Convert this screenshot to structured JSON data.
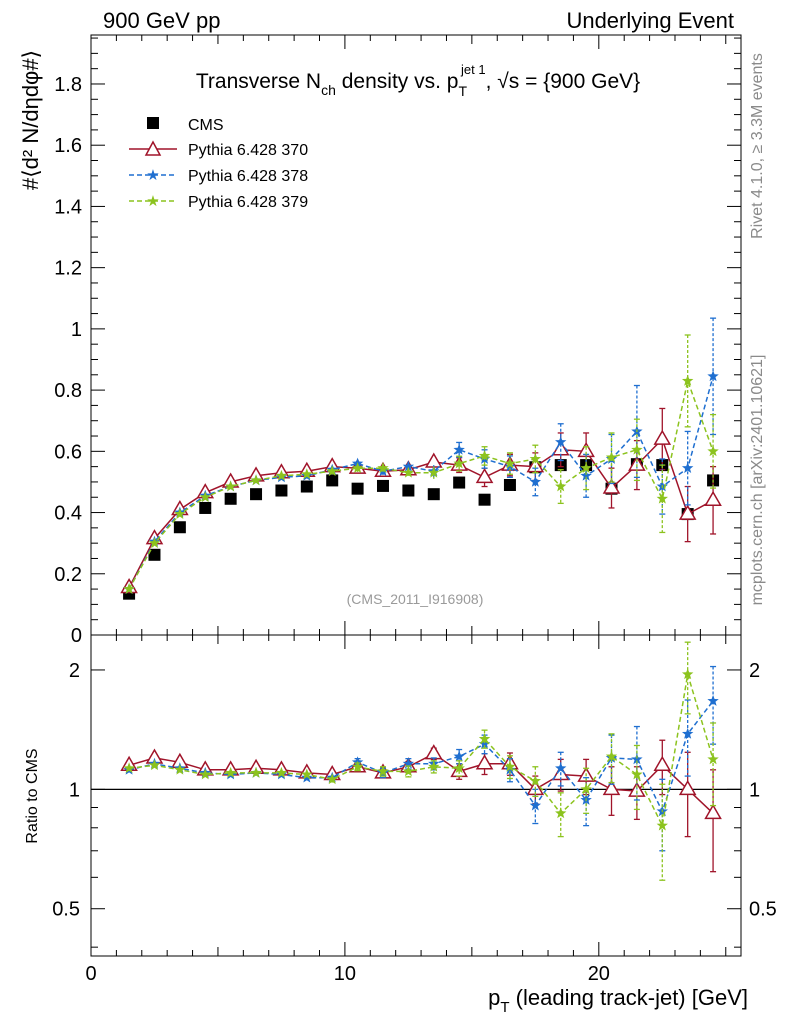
{
  "header": {
    "left": "900 GeV pp",
    "right": "Underlying Event"
  },
  "side_labels": {
    "top": "Rivet 4.1.0, ≥ 3.3M events",
    "bottom": "mcplots.cern.ch [arXiv:2401.10621]"
  },
  "chart_data": {
    "type": "scatter",
    "title": {
      "main": "Transverse N",
      "sub1": "ch",
      "mid": " density vs. p",
      "sub2": "T",
      "sup2": "jet 1",
      "tail": ", √s = {900 GeV}"
    },
    "ylabel": "#⟨d² N/dηdφ#⟩",
    "xlabel": "p",
    "xlabel_sub": "T",
    "xlabel_tail": " (leading track-jet) [GeV]",
    "ratio_ylabel": "Ratio to CMS",
    "watermark": "(CMS_2011_I916908)",
    "xlim": [
      0,
      25.6
    ],
    "ylim": [
      0,
      1.96
    ],
    "ratio_ylim": [
      0.38,
      2.45
    ],
    "x_ticks": [
      "0",
      "10",
      "20"
    ],
    "y_ticks": [
      "0",
      "0.2",
      "0.4",
      "0.6",
      "0.8",
      "1",
      "1.2",
      "1.4",
      "1.6",
      "1.8"
    ],
    "ratio_ticks": [
      "0.5",
      "1",
      "2"
    ],
    "x": [
      1.5,
      2.5,
      3.5,
      4.5,
      5.5,
      6.5,
      7.5,
      8.5,
      9.5,
      10.5,
      11.5,
      12.5,
      13.5,
      14.5,
      15.5,
      16.5,
      17.5,
      18.5,
      19.5,
      20.5,
      21.5,
      22.5,
      23.5,
      24.5
    ],
    "legend": [
      "CMS",
      "Pythia 6.428 370",
      "Pythia 6.428 378",
      "Pythia 6.428 379"
    ],
    "series": [
      {
        "name": "CMS",
        "color": "#000000",
        "style": "square",
        "values": [
          0.135,
          0.262,
          0.352,
          0.415,
          0.445,
          0.46,
          0.472,
          0.485,
          0.505,
          0.478,
          0.487,
          0.472,
          0.46,
          0.498,
          0.442,
          0.49,
          0.548,
          0.555,
          0.555,
          0.478,
          0.558,
          0.555,
          0.395,
          0.505
        ],
        "errors": [
          0.005,
          0.005,
          0.005,
          0.005,
          0.005,
          0.005,
          0.005,
          0.005,
          0.005,
          0.005,
          0.005,
          0.005,
          0.005,
          0.005,
          0.005,
          0.005,
          0.005,
          0.005,
          0.005,
          0.005,
          0.005,
          0.005,
          0.005,
          0.005
        ],
        "ratio": [
          1.0,
          1.0,
          1.0,
          1.0,
          1.0,
          1.0,
          1.0,
          1.0,
          1.0,
          1.0,
          1.0,
          1.0,
          1.0,
          1.0,
          1.0,
          1.0,
          1.0,
          1.0,
          1.0,
          1.0,
          1.0,
          1.0,
          1.0,
          1.0
        ],
        "ratio_errors": [
          0,
          0,
          0,
          0,
          0,
          0,
          0,
          0,
          0,
          0,
          0,
          0,
          0,
          0,
          0,
          0,
          0,
          0,
          0,
          0,
          0,
          0,
          0,
          0
        ]
      },
      {
        "name": "Pythia 6.428 370",
        "color": "#a0142a",
        "style": "triangle",
        "values": [
          0.155,
          0.315,
          0.41,
          0.465,
          0.5,
          0.52,
          0.53,
          0.535,
          0.55,
          0.545,
          0.535,
          0.54,
          0.565,
          0.555,
          0.515,
          0.555,
          0.55,
          0.605,
          0.6,
          0.48,
          0.555,
          0.64,
          0.395,
          0.44
        ],
        "errors": [
          0.005,
          0.005,
          0.005,
          0.005,
          0.005,
          0.006,
          0.007,
          0.008,
          0.01,
          0.012,
          0.014,
          0.016,
          0.02,
          0.024,
          0.03,
          0.035,
          0.045,
          0.055,
          0.06,
          0.065,
          0.08,
          0.1,
          0.09,
          0.11
        ],
        "ratio": [
          1.15,
          1.2,
          1.17,
          1.12,
          1.12,
          1.13,
          1.12,
          1.1,
          1.09,
          1.14,
          1.1,
          1.14,
          1.23,
          1.11,
          1.16,
          1.16,
          1.0,
          1.09,
          1.08,
          1.0,
          0.99,
          1.15,
          1.0,
          0.87
        ],
        "ratio_errors": [
          0.01,
          0.01,
          0.01,
          0.01,
          0.01,
          0.01,
          0.01,
          0.015,
          0.02,
          0.025,
          0.03,
          0.035,
          0.04,
          0.05,
          0.07,
          0.075,
          0.08,
          0.1,
          0.11,
          0.14,
          0.15,
          0.18,
          0.24,
          0.25
        ]
      },
      {
        "name": "Pythia 6.428 378",
        "color": "#1f6fd0",
        "style": "star",
        "values": [
          0.15,
          0.305,
          0.4,
          0.455,
          0.485,
          0.505,
          0.515,
          0.52,
          0.54,
          0.56,
          0.535,
          0.55,
          0.535,
          0.605,
          0.575,
          0.55,
          0.5,
          0.63,
          0.52,
          0.575,
          0.665,
          0.485,
          0.545,
          0.845
        ],
        "errors": [
          0.005,
          0.005,
          0.005,
          0.005,
          0.005,
          0.006,
          0.007,
          0.008,
          0.01,
          0.012,
          0.014,
          0.016,
          0.02,
          0.024,
          0.03,
          0.035,
          0.045,
          0.06,
          0.07,
          0.08,
          0.15,
          0.09,
          0.12,
          0.19
        ],
        "ratio": [
          1.12,
          1.16,
          1.13,
          1.1,
          1.09,
          1.1,
          1.09,
          1.07,
          1.07,
          1.17,
          1.1,
          1.16,
          1.16,
          1.21,
          1.3,
          1.12,
          0.91,
          1.13,
          0.94,
          1.2,
          1.19,
          0.88,
          1.38,
          1.67
        ],
        "ratio_errors": [
          0.01,
          0.01,
          0.01,
          0.01,
          0.01,
          0.01,
          0.01,
          0.015,
          0.02,
          0.025,
          0.03,
          0.035,
          0.04,
          0.05,
          0.07,
          0.075,
          0.09,
          0.11,
          0.13,
          0.17,
          0.25,
          0.18,
          0.3,
          0.37
        ]
      },
      {
        "name": "Pythia 6.428 379",
        "color": "#8cc31e",
        "style": "star",
        "values": [
          0.15,
          0.3,
          0.395,
          0.45,
          0.485,
          0.505,
          0.52,
          0.525,
          0.535,
          0.545,
          0.545,
          0.53,
          0.53,
          0.56,
          0.585,
          0.56,
          0.575,
          0.485,
          0.545,
          0.58,
          0.605,
          0.445,
          0.83,
          0.6
        ],
        "errors": [
          0.005,
          0.005,
          0.005,
          0.005,
          0.005,
          0.006,
          0.007,
          0.008,
          0.01,
          0.012,
          0.014,
          0.016,
          0.02,
          0.024,
          0.03,
          0.035,
          0.045,
          0.055,
          0.07,
          0.08,
          0.1,
          0.11,
          0.15,
          0.12
        ],
        "ratio": [
          1.13,
          1.15,
          1.12,
          1.09,
          1.1,
          1.1,
          1.1,
          1.09,
          1.06,
          1.14,
          1.11,
          1.11,
          1.14,
          1.13,
          1.34,
          1.14,
          1.05,
          0.87,
          1.0,
          1.21,
          1.09,
          0.81,
          1.95,
          1.19
        ],
        "ratio_errors": [
          0.01,
          0.01,
          0.01,
          0.01,
          0.01,
          0.01,
          0.01,
          0.015,
          0.02,
          0.025,
          0.03,
          0.035,
          0.04,
          0.05,
          0.07,
          0.075,
          0.09,
          0.11,
          0.13,
          0.17,
          0.2,
          0.22,
          0.4,
          0.28
        ]
      }
    ]
  }
}
